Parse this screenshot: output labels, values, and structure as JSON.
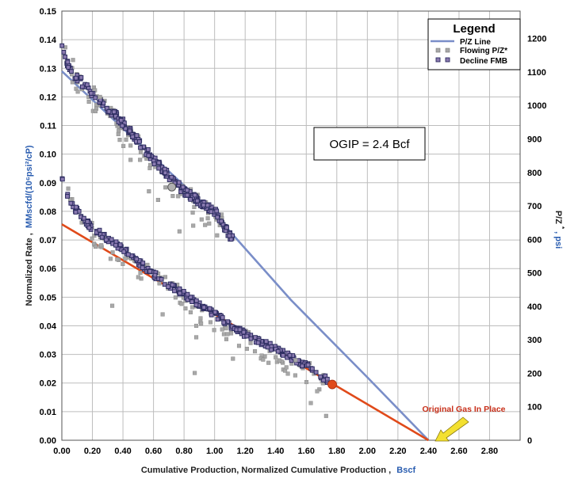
{
  "chart_data": {
    "type": "scatter",
    "xlabel_prefix": "Cumulative Production, Normalized Cumulative Production ,",
    "xlabel_unit": "Bscf",
    "ylabel_left_prefix": "Normalized Rate ,",
    "ylabel_left_unit": "MMscfd/(10⁶psi²/cP)",
    "ylabel_right_prefix": "P/Z",
    "ylabel_right_sup": "*",
    "ylabel_right_unit": ", psi",
    "xlim": [
      0,
      3.0
    ],
    "ylim_left": [
      0,
      0.15
    ],
    "ylim_right": [
      0,
      1282
    ],
    "x_ticks": [
      "0.00",
      "0.20",
      "0.40",
      "0.60",
      "0.80",
      "1.00",
      "1.20",
      "1.40",
      "1.60",
      "1.80",
      "2.00",
      "2.20",
      "2.40",
      "2.60",
      "2.80"
    ],
    "y_left_ticks": [
      "0.00",
      "0.01",
      "0.02",
      "0.03",
      "0.04",
      "0.05",
      "0.06",
      "0.07",
      "0.08",
      "0.09",
      "0.10",
      "0.11",
      "0.12",
      "0.13",
      "0.14",
      "0.15"
    ],
    "y_right_ticks": [
      "0",
      "100",
      "200",
      "300",
      "400",
      "500",
      "600",
      "700",
      "800",
      "900",
      "1000",
      "1100",
      "1200"
    ],
    "legend": {
      "title": "Legend",
      "items": [
        "P/Z Line",
        "Flowing P/Z*",
        "Decline FMB"
      ]
    },
    "annotations": {
      "ogip": "OGIP = 2.4 Bcf",
      "original_gas": "Original Gas In Place"
    },
    "colors": {
      "pz_line": "#7a8ec8",
      "decline_line": "#e04a1a",
      "flowing_marker": "#a8a8a8",
      "decline_marker": "#2c2c60",
      "decline_marker_fill": "#8a7ab0",
      "accent_blue": "#2a5db0",
      "arrow": "#f3e030",
      "annotation_red": "#c8301a"
    },
    "series": [
      {
        "name": "P/Z Line",
        "kind": "line",
        "color": "#7a8ec8",
        "x": [
          0.0,
          1.0,
          1.2,
          1.5,
          2.0,
          2.4
        ],
        "y": [
          0.129,
          0.079,
          0.067,
          0.049,
          0.022,
          0.0
        ]
      },
      {
        "name": "Decline Trend",
        "kind": "line",
        "color": "#e04a1a",
        "x": [
          0.0,
          2.4
        ],
        "y": [
          0.0755,
          0.0
        ]
      },
      {
        "name": "Decline FMB Endpoint",
        "kind": "marker",
        "x": 1.77,
        "y": 0.0195
      },
      {
        "name": "P/Z Highlight",
        "kind": "marker",
        "x": 0.72,
        "y": 0.0885
      }
    ],
    "scatter_bands": [
      {
        "name": "Decline FMB (upper)",
        "kind": "decline",
        "seed": 11,
        "count": 220,
        "spread": 0.0014,
        "x": [
          0.0,
          0.03,
          0.06,
          0.1,
          0.2,
          0.4,
          0.6,
          0.8,
          1.0,
          1.12
        ],
        "y": [
          0.139,
          0.133,
          0.129,
          0.127,
          0.121,
          0.111,
          0.098,
          0.087,
          0.08,
          0.07
        ]
      },
      {
        "name": "Decline FMB (lower)",
        "kind": "decline",
        "seed": 23,
        "count": 260,
        "spread": 0.0011,
        "x": [
          0.0,
          0.04,
          0.1,
          0.2,
          0.4,
          0.6,
          0.8,
          1.0,
          1.2,
          1.4,
          1.6,
          1.74
        ],
        "y": [
          0.091,
          0.085,
          0.08,
          0.074,
          0.067,
          0.058,
          0.051,
          0.044,
          0.037,
          0.032,
          0.026,
          0.021
        ]
      },
      {
        "name": "Flowing P/Z* (upper)",
        "kind": "flowing",
        "seed": 37,
        "count": 90,
        "spread": 0.0045,
        "x": [
          0.0,
          0.1,
          0.3,
          0.5,
          0.7,
          0.9,
          1.1
        ],
        "y": [
          0.137,
          0.126,
          0.113,
          0.102,
          0.091,
          0.081,
          0.072
        ]
      },
      {
        "name": "Flowing P/Z* (lower)",
        "kind": "flowing",
        "seed": 53,
        "count": 110,
        "spread": 0.004,
        "x": [
          0.02,
          0.2,
          0.4,
          0.6,
          0.8,
          1.0,
          1.2,
          1.4,
          1.6,
          1.72
        ],
        "y": [
          0.088,
          0.072,
          0.064,
          0.057,
          0.049,
          0.041,
          0.035,
          0.029,
          0.024,
          0.019
        ]
      }
    ],
    "outliers_flowing": [
      {
        "x": 0.22,
        "y": 0.115
      },
      {
        "x": 0.25,
        "y": 0.12
      },
      {
        "x": 0.37,
        "y": 0.107
      },
      {
        "x": 0.45,
        "y": 0.103
      },
      {
        "x": 0.45,
        "y": 0.098
      },
      {
        "x": 0.57,
        "y": 0.087
      },
      {
        "x": 0.63,
        "y": 0.084
      },
      {
        "x": 0.77,
        "y": 0.073
      },
      {
        "x": 0.86,
        "y": 0.075
      },
      {
        "x": 0.88,
        "y": 0.04
      },
      {
        "x": 0.88,
        "y": 0.036
      },
      {
        "x": 0.87,
        "y": 0.0235
      },
      {
        "x": 1.12,
        "y": 0.0285
      },
      {
        "x": 1.16,
        "y": 0.033
      },
      {
        "x": 1.4,
        "y": 0.029
      },
      {
        "x": 1.47,
        "y": 0.0255
      },
      {
        "x": 1.53,
        "y": 0.028
      },
      {
        "x": 1.63,
        "y": 0.013
      },
      {
        "x": 1.73,
        "y": 0.0085
      },
      {
        "x": 0.5,
        "y": 0.057
      },
      {
        "x": 0.66,
        "y": 0.044
      },
      {
        "x": 0.33,
        "y": 0.047
      }
    ]
  }
}
